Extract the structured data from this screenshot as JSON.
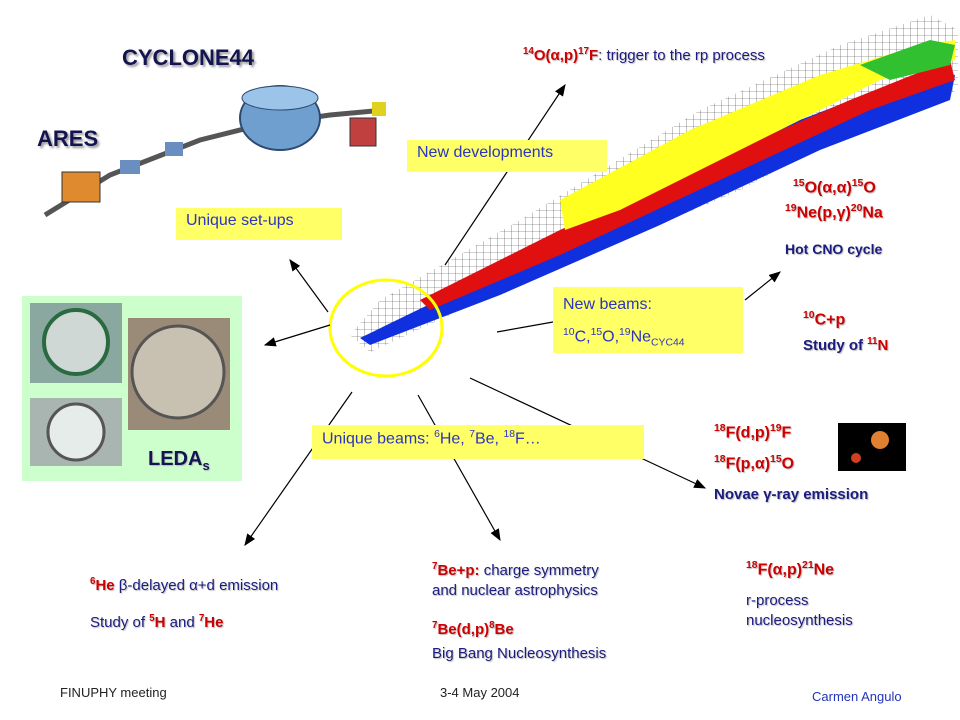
{
  "facility": {
    "cyclotron": "CYCLONE44",
    "ares": "ARES"
  },
  "boxes": {
    "unique_setups": "Unique set-ups",
    "new_developments": "New developments",
    "new_beams": {
      "title": "New beams:",
      "list": [
        "10",
        "C,",
        "15",
        "O,",
        "19",
        "Ne",
        "CYC44"
      ]
    },
    "unique_beams": [
      "Unique beams: ",
      "6",
      "He, ",
      "7",
      "Be, ",
      "18",
      "F…"
    ]
  },
  "detector": [
    "LEDA",
    "s"
  ],
  "topics": {
    "rp": [
      "14",
      "O(α,p)",
      "17",
      "F",
      ": trigger to the rp process"
    ],
    "cno": {
      "line1": [
        "15",
        "O(α,α)",
        "15",
        "O"
      ],
      "line2": [
        "19",
        "Ne(p,γ)",
        "20",
        "Na"
      ],
      "note": "Hot CNO cycle"
    },
    "c10": {
      "reaction": [
        "10",
        "C+p"
      ],
      "note": [
        "Study of ",
        "11",
        "N"
      ]
    },
    "novae": {
      "line1": [
        "18",
        "F(d,p)",
        "19",
        "F"
      ],
      "line2": [
        "18",
        "F(p,α)",
        "15",
        "O"
      ],
      "note": "Novae γ-ray emission"
    },
    "he6": {
      "line": [
        "6",
        "He",
        " β-delayed α+d emission"
      ],
      "note": [
        "Study of ",
        "5",
        "H",
        " and ",
        "7",
        "He"
      ]
    },
    "be7": {
      "line1": [
        "7",
        "Be+p:",
        " charge symmetry"
      ],
      "line2": "and nuclear astrophysics",
      "line3": [
        "7",
        "Be(d,p)",
        "8",
        "Be"
      ],
      "line4": "Big Bang Nucleosynthesis"
    },
    "f18": {
      "reaction": [
        "18",
        "F(α,p)",
        "21",
        "Ne"
      ],
      "note1": "r-process",
      "note2": "nucleosynthesis"
    }
  },
  "footer": {
    "meeting": "FINUPHY meeting",
    "date": "3-4 May 2004",
    "author": "Carmen Angulo"
  }
}
